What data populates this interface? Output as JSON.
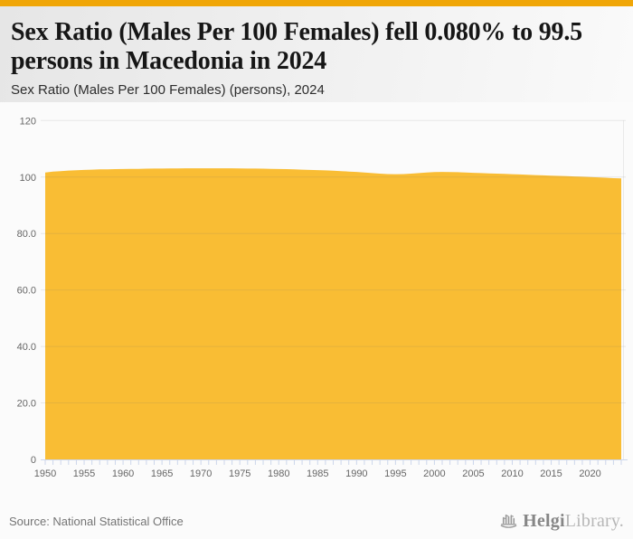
{
  "page": {
    "background": "#fbfbfb",
    "accent_bar_color": "#F0A607"
  },
  "header": {
    "title_lines": [
      "Sex Ratio (Males Per 100 Females) fell 0.080% to 99.5",
      "persons in Macedonia in 2024"
    ],
    "subtitle": "Sex Ratio (Males Per 100 Females) (persons), 2024"
  },
  "footer": {
    "source": "Source: National Statistical Office",
    "logo_primary": "Helgi",
    "logo_secondary": "Library."
  },
  "chart_data": {
    "type": "area",
    "title": "Sex Ratio (Males Per 100 Females) (persons), 2024",
    "series_name": "Sex Ratio (Males Per 100 Females)",
    "x": [
      1950,
      1951,
      1952,
      1953,
      1954,
      1955,
      1956,
      1957,
      1958,
      1959,
      1960,
      1961,
      1962,
      1963,
      1964,
      1965,
      1966,
      1967,
      1968,
      1969,
      1970,
      1971,
      1972,
      1973,
      1974,
      1975,
      1976,
      1977,
      1978,
      1979,
      1980,
      1981,
      1982,
      1983,
      1984,
      1985,
      1986,
      1987,
      1988,
      1989,
      1990,
      1991,
      1992,
      1993,
      1994,
      1995,
      1996,
      1997,
      1998,
      1999,
      2000,
      2001,
      2002,
      2003,
      2004,
      2005,
      2006,
      2007,
      2008,
      2009,
      2010,
      2011,
      2012,
      2013,
      2014,
      2015,
      2016,
      2017,
      2018,
      2019,
      2020,
      2021,
      2022,
      2023,
      2024
    ],
    "values": [
      101.6,
      101.9,
      102.1,
      102.3,
      102.4,
      102.5,
      102.6,
      102.7,
      102.75,
      102.8,
      102.85,
      102.9,
      102.9,
      102.95,
      103.0,
      103.0,
      103.05,
      103.05,
      103.1,
      103.1,
      103.1,
      103.1,
      103.1,
      103.1,
      103.1,
      103.05,
      103.0,
      103.0,
      102.95,
      102.9,
      102.85,
      102.8,
      102.7,
      102.6,
      102.5,
      102.45,
      102.35,
      102.25,
      102.1,
      101.95,
      101.8,
      101.6,
      101.4,
      101.2,
      101.05,
      101.0,
      101.05,
      101.2,
      101.4,
      101.6,
      101.75,
      101.8,
      101.75,
      101.7,
      101.6,
      101.5,
      101.4,
      101.3,
      101.2,
      101.1,
      101.0,
      100.9,
      100.8,
      100.7,
      100.6,
      100.5,
      100.4,
      100.3,
      100.2,
      100.1,
      100.0,
      99.9,
      99.75,
      99.6,
      99.5
    ],
    "xlim": [
      1950,
      2024
    ],
    "ylim": [
      0,
      120
    ],
    "y_ticks": [
      {
        "value": 0,
        "label": "0"
      },
      {
        "value": 20,
        "label": "20.0"
      },
      {
        "value": 40,
        "label": "40.0"
      },
      {
        "value": 60,
        "label": "60.0"
      },
      {
        "value": 80,
        "label": "80.0"
      },
      {
        "value": 100,
        "label": "100"
      },
      {
        "value": 120,
        "label": "120"
      }
    ],
    "x_tick_labels": [
      1950,
      1955,
      1960,
      1965,
      1970,
      1975,
      1980,
      1985,
      1990,
      1995,
      2000,
      2005,
      2010,
      2015,
      2020
    ],
    "grid": true,
    "legend": "none",
    "fill_color": "#F9BD34",
    "axis_color": "#ccd6eb",
    "grid_color": "#e6e6e6",
    "label_color": "#666666"
  }
}
